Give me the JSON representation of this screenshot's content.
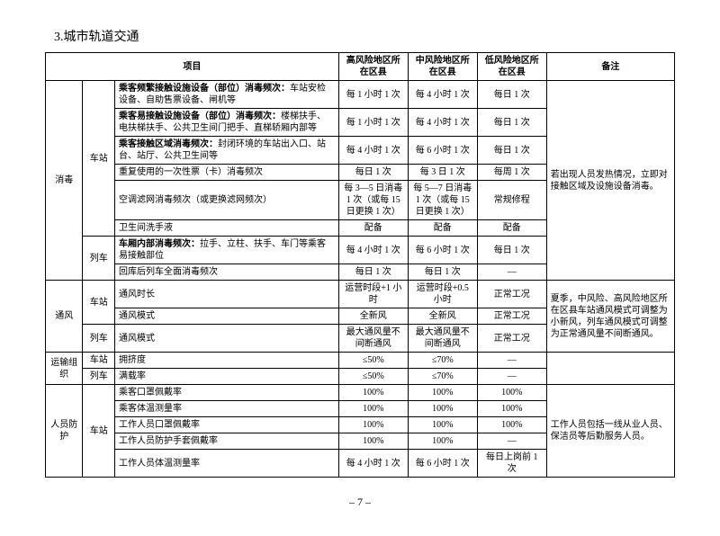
{
  "title": "3.城市轨道交通",
  "headers": {
    "project": "项目",
    "high": "高风险地区所在区县",
    "mid": "中风险地区所在区县",
    "low": "低风险地区所在区县",
    "note": "备注"
  },
  "groups": {
    "disinfect": "消毒",
    "vent": "通风",
    "transport": "运输组织",
    "protect": "人员防护"
  },
  "sub": {
    "station": "车站",
    "train": "列车"
  },
  "r1": {
    "item_b": "乘客频繁接触设施设备（部位）消毒频次：",
    "item_t": "车站安检设备、自助售票设备、闸机等",
    "h": "每 1 小时 1 次",
    "m": "每 4 小时 1 次",
    "l": "每日 1 次"
  },
  "r2": {
    "item_b": "乘客易接触设施设备（部位）消毒频次：",
    "item_t": "楼梯扶手、电扶梯扶手、公共卫生间门把手、直梯轿厢内部等",
    "h": "每 1 小时 1 次",
    "m": "每 4 小时 1 次",
    "l": "每日 1 次"
  },
  "r3": {
    "item_b": "乘客接触区域消毒频次：",
    "item_t": "封闭环境的车站出入口、站台、站厅、公共卫生间等",
    "h": "每 4 小时 1 次",
    "m": "每 6 小时 1 次",
    "l": "每日 1 次"
  },
  "r4": {
    "item": "重复使用的一次性票（卡）消毒频次",
    "h": "每日 1 次",
    "m": "每 3 日 1 次",
    "l": "每周 1 次"
  },
  "r5": {
    "item": "空调滤网消毒频次（或更换滤网频次）",
    "h": "每 3—5 日消毒 1 次（或每 15 日更换 1 次）",
    "m": "每 5—7 日消毒 1 次（或每 15 日更换 1 次）",
    "l": "常规修程"
  },
  "r6": {
    "item": "卫生间洗手液",
    "h": "配备",
    "m": "配备",
    "l": "配备"
  },
  "r7": {
    "item_b": "车厢内部消毒频次：",
    "item_t": "拉手、立柱、扶手、车门等乘客易接触部位",
    "h": "每 4 小时 1 次",
    "m": "每 6 小时 1 次",
    "l": "每日 1 次"
  },
  "r8": {
    "item": "回库后列车全面消毒频次",
    "h": "每日 1 次",
    "m": "每日 1 次",
    "l": "—"
  },
  "r9": {
    "item": "通风时长",
    "h": "运营时段+1 小时",
    "m": "运营时段+0.5 小时",
    "l": "正常工况"
  },
  "r10": {
    "item": "通风模式",
    "h": "全新风",
    "m": "全新风",
    "l": "正常工况"
  },
  "r11": {
    "item": "通风模式",
    "h": "最大通风量不间断通风",
    "m": "最大通风量不间断通风",
    "l": "正常工况"
  },
  "r12": {
    "item": "拥挤度",
    "h": "≤50%",
    "m": "≤70%",
    "l": "—"
  },
  "r13": {
    "item": "满载率",
    "h": "≤50%",
    "m": "≤70%",
    "l": "—"
  },
  "r14": {
    "item": "乘客口罩佩戴率",
    "h": "100%",
    "m": "100%",
    "l": "100%"
  },
  "r15": {
    "item": "乘客体温测量率",
    "h": "100%",
    "m": "100%",
    "l": "100%"
  },
  "r16": {
    "item": "工作人员口罩佩戴率",
    "h": "100%",
    "m": "100%",
    "l": "100%"
  },
  "r17": {
    "item": "工作人员防护手套佩戴率",
    "h": "100%",
    "m": "100%",
    "l": "—"
  },
  "r18": {
    "item": "工作人员体温测量率",
    "h": "每 4 小时 1 次",
    "m": "每 6 小时 1 次",
    "l": "每日上岗前 1 次"
  },
  "note1": "若出现人员发热情况，立即对接触区域及设施设备消毒。",
  "note2": "夏季，中风险、高风险地区所在区县车站通风模式可调整为小新风，列车通风模式可调整为正常通风量不间断通风。",
  "note3": "工作人员包括一线从业人员、保洁员等后勤服务人员。",
  "pagenum": "– 7 –"
}
